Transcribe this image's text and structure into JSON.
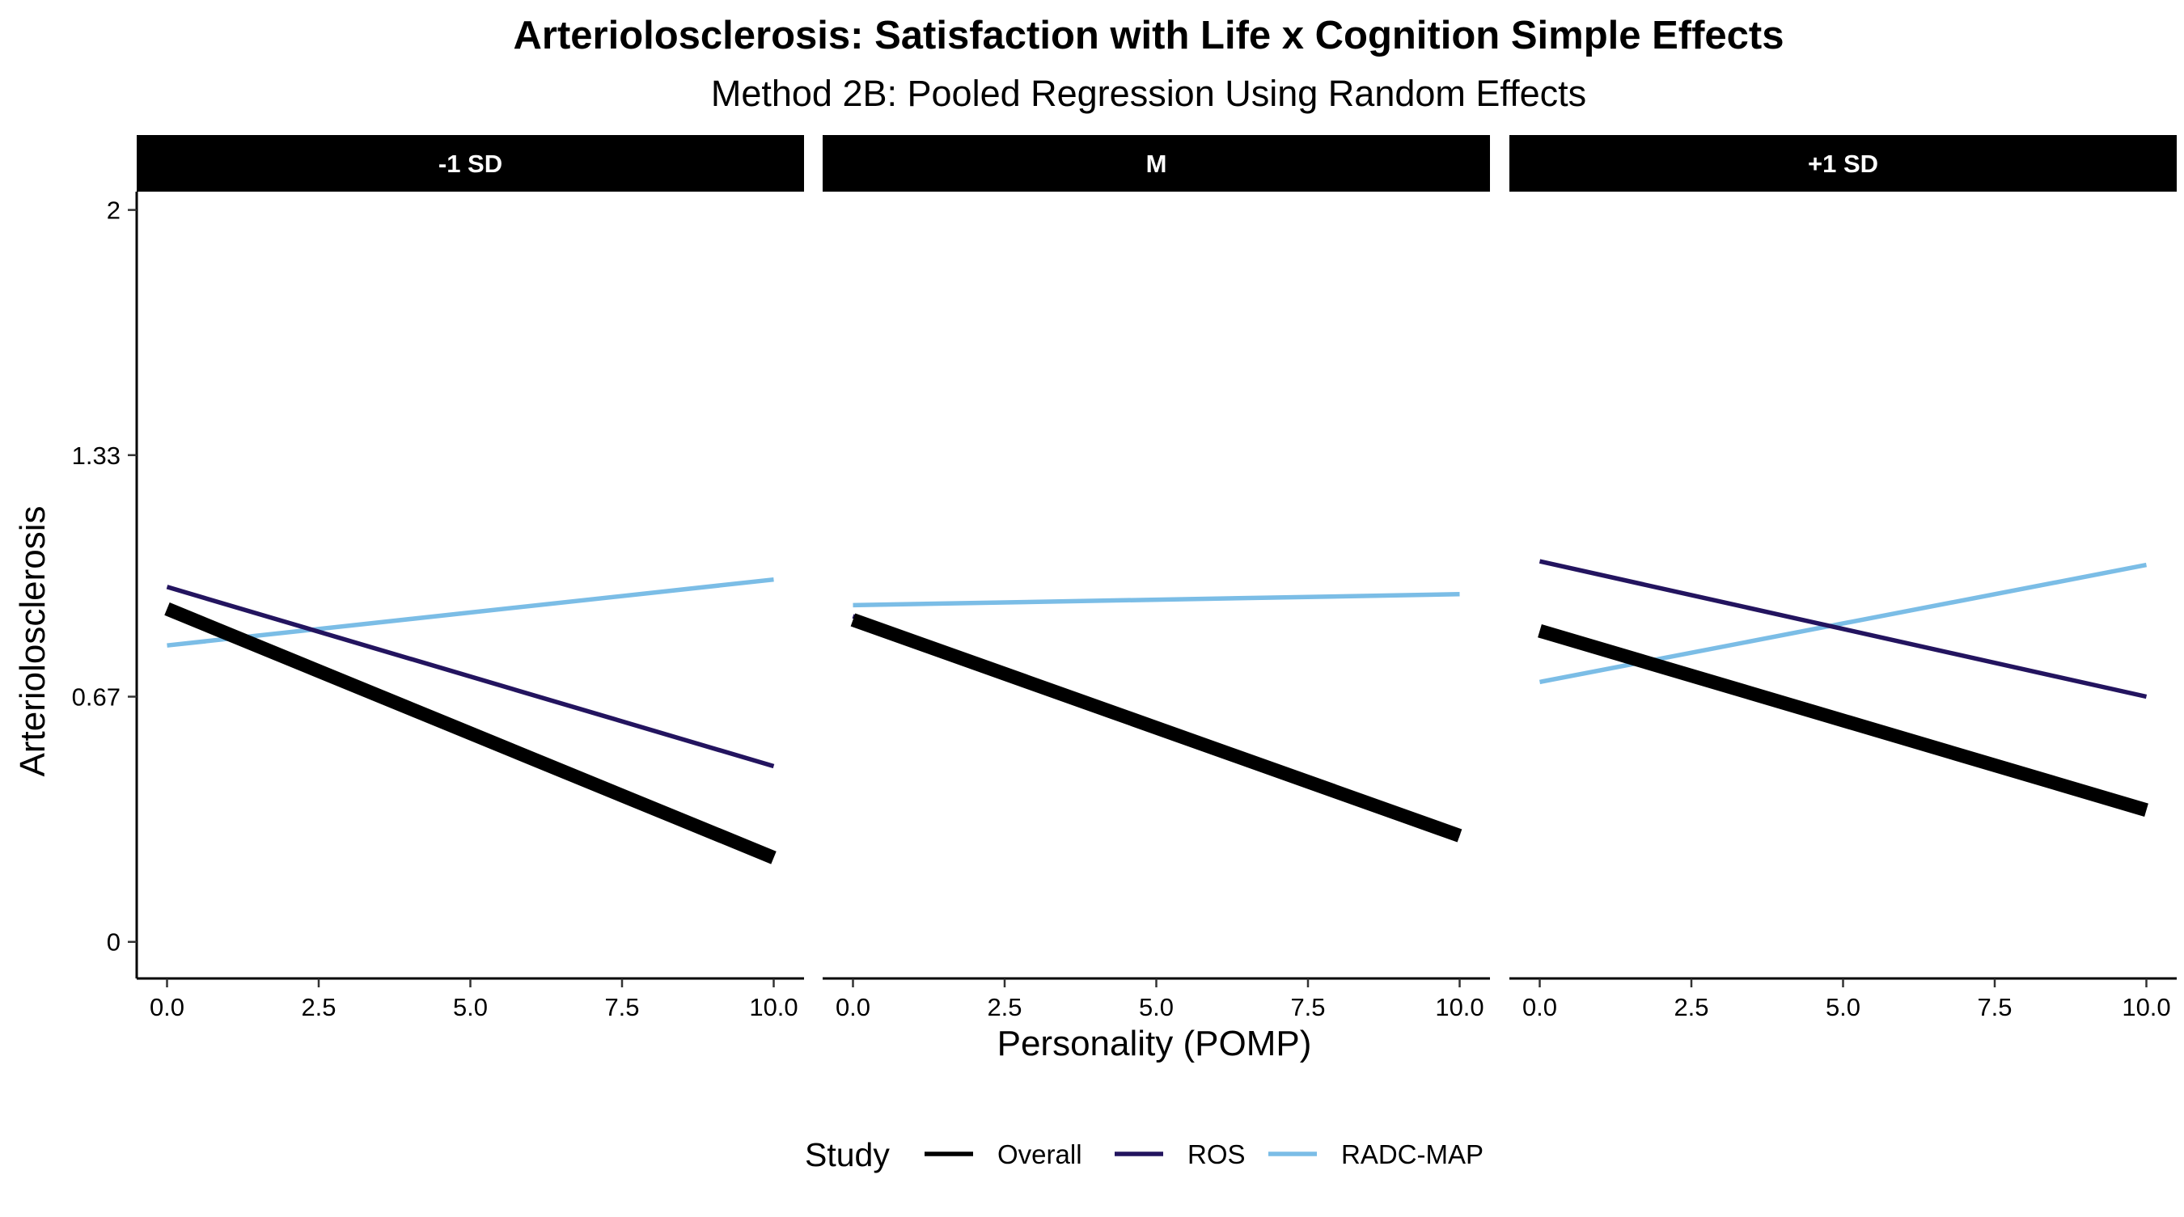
{
  "chart_data": {
    "type": "line",
    "title": "Arteriolosclerosis: Satisfaction with Life x Cognition Simple Effects",
    "subtitle": "Method 2B: Pooled Regression Using Random Effects",
    "xlabel": "Personality (POMP)",
    "ylabel": "Arteriolosclerosis",
    "xlim": [
      -0.5,
      10.5
    ],
    "ylim": [
      -0.1,
      2.05
    ],
    "x_ticks": [
      0,
      2.5,
      5,
      7.5,
      10
    ],
    "x_tick_labels": [
      "0.0",
      "2.5",
      "5.0",
      "7.5",
      "10.0"
    ],
    "y_ticks": [
      0,
      0.67,
      1.33,
      2
    ],
    "y_tick_labels": [
      "0",
      "0.67",
      "1.33",
      "2"
    ],
    "grid": false,
    "legend": {
      "title": "Study",
      "position": "bottom",
      "entries": [
        "Overall",
        "ROS",
        "RADC-MAP"
      ]
    },
    "series_styles": [
      {
        "name": "Overall",
        "color": "#000000",
        "weight": "thick"
      },
      {
        "name": "ROS",
        "color": "#23145F",
        "weight": "normal"
      },
      {
        "name": "RADC-MAP",
        "color": "#7BBDE6",
        "weight": "normal"
      }
    ],
    "panels": [
      {
        "label": "-1 SD",
        "series": [
          {
            "name": "RADC-MAP",
            "x": [
              0,
              10
            ],
            "y": [
              0.81,
              0.99
            ]
          },
          {
            "name": "ROS",
            "x": [
              0,
              10
            ],
            "y": [
              0.97,
              0.48
            ]
          },
          {
            "name": "Overall",
            "x": [
              0,
              10
            ],
            "y": [
              0.91,
              0.23
            ]
          }
        ]
      },
      {
        "label": "M",
        "series": [
          {
            "name": "RADC-MAP",
            "x": [
              0,
              10
            ],
            "y": [
              0.92,
              0.95
            ]
          },
          {
            "name": "ROS",
            "x": [
              0,
              10
            ],
            "y": [
              0.89,
              0.29
            ]
          },
          {
            "name": "Overall",
            "x": [
              0,
              10
            ],
            "y": [
              0.88,
              0.29
            ]
          }
        ]
      },
      {
        "label": "+1 SD",
        "series": [
          {
            "name": "RADC-MAP",
            "x": [
              0,
              10
            ],
            "y": [
              0.71,
              1.03
            ]
          },
          {
            "name": "ROS",
            "x": [
              0,
              10
            ],
            "y": [
              1.04,
              0.67
            ]
          },
          {
            "name": "Overall",
            "x": [
              0,
              10
            ],
            "y": [
              0.85,
              0.36
            ]
          }
        ]
      }
    ]
  }
}
